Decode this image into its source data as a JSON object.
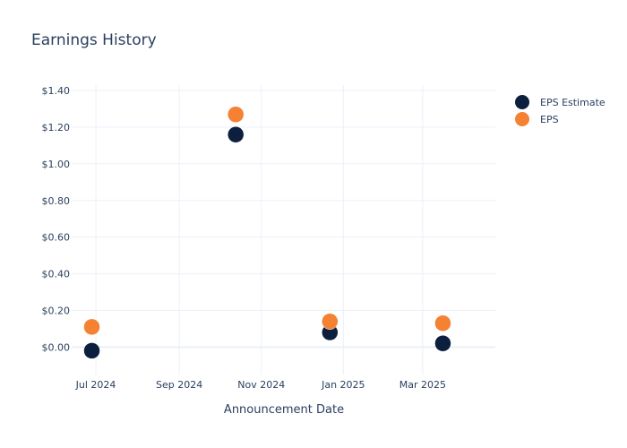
{
  "chart_data": {
    "type": "scatter",
    "title": "Earnings History",
    "xlabel": "Announcement Date",
    "ylabel": "",
    "x_ticks": [
      {
        "date": "2024-07-01",
        "label": "Jul 2024"
      },
      {
        "date": "2024-09-01",
        "label": "Sep 2024"
      },
      {
        "date": "2024-11-01",
        "label": "Nov 2024"
      },
      {
        "date": "2025-01-01",
        "label": "Jan 2025"
      },
      {
        "date": "2025-03-01",
        "label": "Mar 2025"
      }
    ],
    "y_ticks": [
      {
        "value": 0.0,
        "label": "$0.00"
      },
      {
        "value": 0.2,
        "label": "$0.20"
      },
      {
        "value": 0.4,
        "label": "$0.40"
      },
      {
        "value": 0.6,
        "label": "$0.60"
      },
      {
        "value": 0.8,
        "label": "$0.80"
      },
      {
        "value": 1.0,
        "label": "$1.00"
      },
      {
        "value": 1.2,
        "label": "$1.20"
      },
      {
        "value": 1.4,
        "label": "$1.40"
      }
    ],
    "xlim": [
      "2024-06-13",
      "2025-04-24"
    ],
    "ylim": [
      -0.15,
      1.43
    ],
    "grid": true,
    "legend_position": "top-right",
    "series": [
      {
        "name": "EPS Estimate",
        "color": "#0d1f3f",
        "points": [
          {
            "x": "2024-06-28",
            "y": -0.02
          },
          {
            "x": "2024-10-13",
            "y": 1.16
          },
          {
            "x": "2024-12-22",
            "y": 0.08
          },
          {
            "x": "2025-03-16",
            "y": 0.02
          }
        ]
      },
      {
        "name": "EPS",
        "color": "#f58232",
        "points": [
          {
            "x": "2024-06-28",
            "y": 0.11
          },
          {
            "x": "2024-10-13",
            "y": 1.27
          },
          {
            "x": "2024-12-22",
            "y": 0.14
          },
          {
            "x": "2025-03-16",
            "y": 0.13
          }
        ]
      }
    ]
  }
}
